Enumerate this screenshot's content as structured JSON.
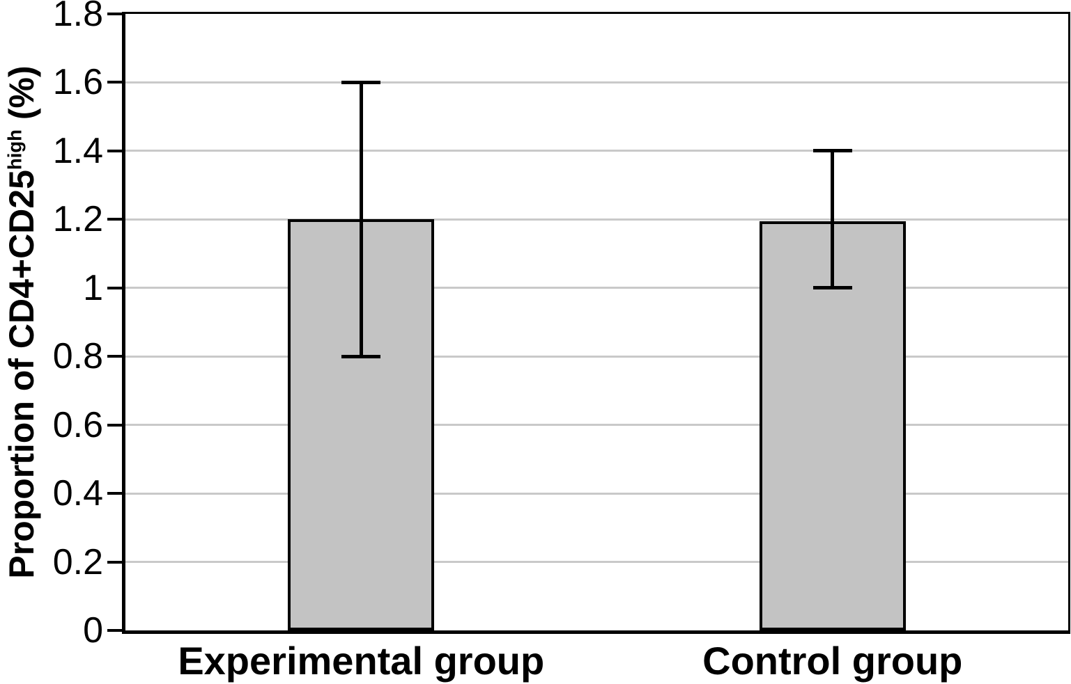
{
  "chart_data": {
    "type": "bar",
    "title": "",
    "categories": [
      "Experimental group",
      "Control group"
    ],
    "values": [
      1.2,
      1.195
    ],
    "error_low": [
      0.8,
      1.0
    ],
    "error_high": [
      1.6,
      1.4
    ],
    "ylabel": "Proportion of CD4+CD25high (%)",
    "ylabel_parts": {
      "base": "Proportion of CD4+CD25",
      "superscript": "high",
      "suffix": " (%)"
    },
    "xlabel": "",
    "ylim": [
      0,
      1.8
    ],
    "yticks": [
      "0",
      "0.2",
      "0.4",
      "0.6",
      "0.8",
      "1",
      "1.2",
      "1.4",
      "1.6",
      "1.8"
    ],
    "grid": true,
    "legend_position": "none",
    "colors": {
      "bar_fill": "#c3c3c3",
      "bar_border": "#000000",
      "gridline": "#c9c9c9",
      "axis": "#000000",
      "background": "#ffffff",
      "text": "#000000"
    }
  }
}
